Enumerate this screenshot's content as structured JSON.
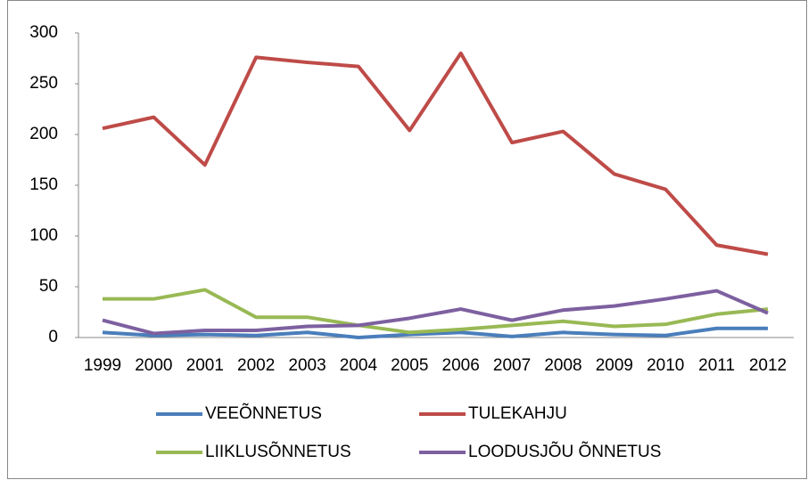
{
  "chart_data": {
    "type": "line",
    "x": [
      "1999",
      "2000",
      "2001",
      "2002",
      "2003",
      "2004",
      "2005",
      "2006",
      "2007",
      "2008",
      "2009",
      "2010",
      "2011",
      "2012"
    ],
    "series": [
      {
        "name": "VEEÕNNETUS",
        "color": "#4a7ebb",
        "values": [
          5,
          2,
          3,
          2,
          5,
          0,
          3,
          5,
          1,
          5,
          3,
          2,
          9,
          9
        ]
      },
      {
        "name": "TULEKAHJU",
        "color": "#be4b48",
        "values": [
          206,
          217,
          170,
          276,
          271,
          267,
          204,
          280,
          192,
          203,
          161,
          146,
          91,
          82
        ]
      },
      {
        "name": "LIIKLUSÕNNETUS",
        "color": "#98b954",
        "values": [
          38,
          38,
          47,
          20,
          20,
          12,
          5,
          8,
          12,
          16,
          11,
          13,
          23,
          28
        ]
      },
      {
        "name": "LOODUSJÕU ÕNNETUS",
        "color": "#7d60a0",
        "values": [
          17,
          4,
          7,
          7,
          11,
          12,
          19,
          28,
          17,
          27,
          31,
          38,
          46,
          24
        ]
      }
    ],
    "ylim": [
      0,
      300
    ],
    "yticks": [
      0,
      50,
      100,
      150,
      200,
      250,
      300
    ]
  }
}
